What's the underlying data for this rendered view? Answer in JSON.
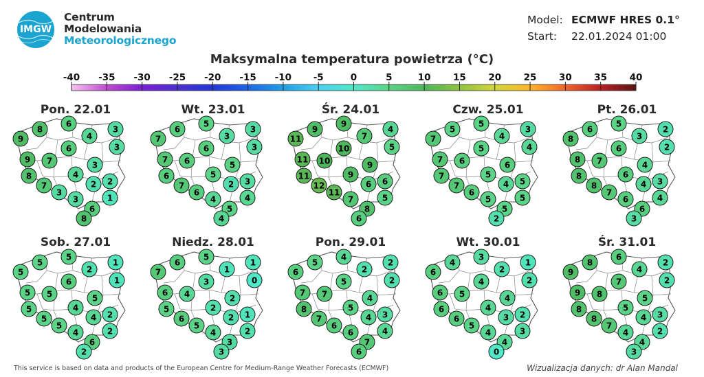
{
  "logo": {
    "abbr": "IMGW",
    "lines": [
      "Centrum",
      "Modelowania",
      "Meteorologicznego"
    ]
  },
  "model": {
    "model_label": "Model:",
    "model_value": "ECMWF HRES 0.1°",
    "start_label": "Start:",
    "start_value": "22.01.2024 01:00"
  },
  "title": "Maksymalna temperatura powietrza (°C)",
  "scale": {
    "ticks": [
      -40,
      -35,
      -30,
      -25,
      -20,
      -15,
      -10,
      -5,
      0,
      5,
      10,
      15,
      20,
      25,
      30,
      35,
      40
    ],
    "colors": [
      "#f3c4ef",
      "#c04ad0",
      "#7a1fd6",
      "#4b2fd0",
      "#2436d6",
      "#1e66e6",
      "#1f9fe6",
      "#4ad0f0",
      "#4fe8c8",
      "#5bd488",
      "#4db65c",
      "#8fc23e",
      "#d2d63a",
      "#ffb42a",
      "#f0652a",
      "#b81f24",
      "#5a1414"
    ]
  },
  "days": [
    {
      "title": "Pon. 22.01",
      "values": [
        9,
        8,
        6,
        4,
        3,
        3,
        9,
        7,
        6,
        3,
        8,
        7,
        4,
        2,
        2,
        3,
        3,
        6,
        1,
        8
      ]
    },
    {
      "title": "Wt. 23.01",
      "values": [
        7,
        6,
        5,
        3,
        3,
        3,
        7,
        6,
        6,
        5,
        6,
        7,
        5,
        2,
        3,
        6,
        4,
        5,
        4,
        4
      ]
    },
    {
      "title": "Śr. 24.01",
      "values": [
        11,
        9,
        9,
        7,
        4,
        5,
        11,
        10,
        10,
        9,
        11,
        12,
        9,
        6,
        6,
        11,
        7,
        8,
        5,
        6
      ]
    },
    {
      "title": "Czw. 25.01",
      "values": [
        7,
        5,
        5,
        4,
        3,
        4,
        7,
        6,
        5,
        6,
        7,
        7,
        5,
        4,
        5,
        6,
        5,
        5,
        5,
        2
      ]
    },
    {
      "title": "Pt. 26.01",
      "values": [
        8,
        6,
        5,
        3,
        2,
        2,
        8,
        7,
        6,
        4,
        8,
        8,
        6,
        4,
        3,
        7,
        6,
        6,
        4,
        3
      ]
    },
    {
      "title": "Sob. 27.01",
      "values": [
        5,
        5,
        5,
        2,
        1,
        1,
        5,
        5,
        6,
        5,
        5,
        5,
        4,
        4,
        2,
        5,
        4,
        6,
        2,
        2
      ]
    },
    {
      "title": "Niedz. 28.01",
      "values": [
        7,
        6,
        5,
        1,
        1,
        0,
        6,
        4,
        3,
        2,
        5,
        6,
        2,
        2,
        1,
        5,
        4,
        3,
        2,
        3
      ]
    },
    {
      "title": "Pon. 29.01",
      "values": [
        6,
        5,
        4,
        2,
        2,
        2,
        7,
        7,
        5,
        4,
        8,
        7,
        5,
        4,
        3,
        6,
        6,
        7,
        4,
        6
      ]
    },
    {
      "title": "Wt. 30.01",
      "values": [
        6,
        4,
        3,
        2,
        1,
        2,
        6,
        5,
        4,
        4,
        6,
        6,
        4,
        3,
        2,
        5,
        4,
        4,
        3,
        0
      ]
    },
    {
      "title": "Śr. 31.01",
      "values": [
        9,
        8,
        6,
        4,
        2,
        2,
        9,
        8,
        7,
        5,
        8,
        8,
        5,
        4,
        3,
        7,
        4,
        4,
        2,
        3
      ]
    }
  ],
  "footer": {
    "left": "This service is based on data and products of the European Centre for Medium-Range Weather Forecasts (ECMWF)",
    "right": "Wizualizacja danych: dr Alan Mandal"
  }
}
